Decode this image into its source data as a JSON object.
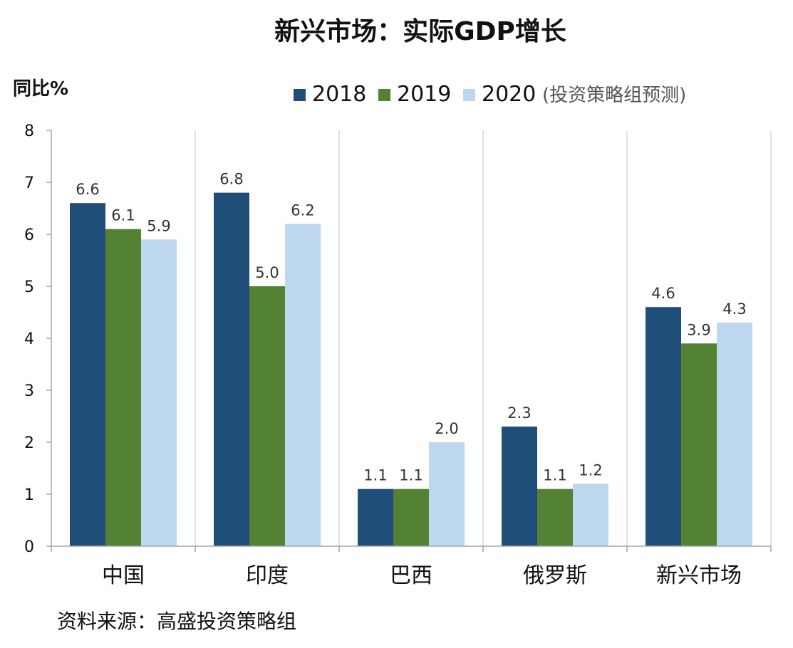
{
  "chart_data": {
    "type": "bar",
    "title": "新兴市场：实际GDP增长",
    "ylabel": "同比%",
    "xlabel": "",
    "ylim": [
      0,
      8
    ],
    "yticks": [
      0,
      1,
      2,
      3,
      4,
      5,
      6,
      7,
      8
    ],
    "grid": false,
    "category_separators": true,
    "legend_position": "top-right",
    "categories": [
      "中国",
      "印度",
      "巴西",
      "俄罗斯",
      "新兴市场"
    ],
    "series": [
      {
        "name": "2018",
        "values": [
          6.6,
          6.8,
          1.1,
          2.3,
          4.6
        ],
        "color": "#1f4e79"
      },
      {
        "name": "2019",
        "values": [
          6.1,
          5.0,
          1.1,
          1.1,
          3.9
        ],
        "color": "#548235"
      },
      {
        "name": "2020",
        "values": [
          5.9,
          6.2,
          2.0,
          1.2,
          4.3
        ],
        "color": "#bdd7ee"
      }
    ],
    "legend_note": "(投资策略组预测)",
    "source": "资料来源：高盛投资策略组"
  },
  "colors": {
    "axis": "#a6a6a6",
    "text": "#111111",
    "label_text": "#333333",
    "note_text": "#555555"
  }
}
